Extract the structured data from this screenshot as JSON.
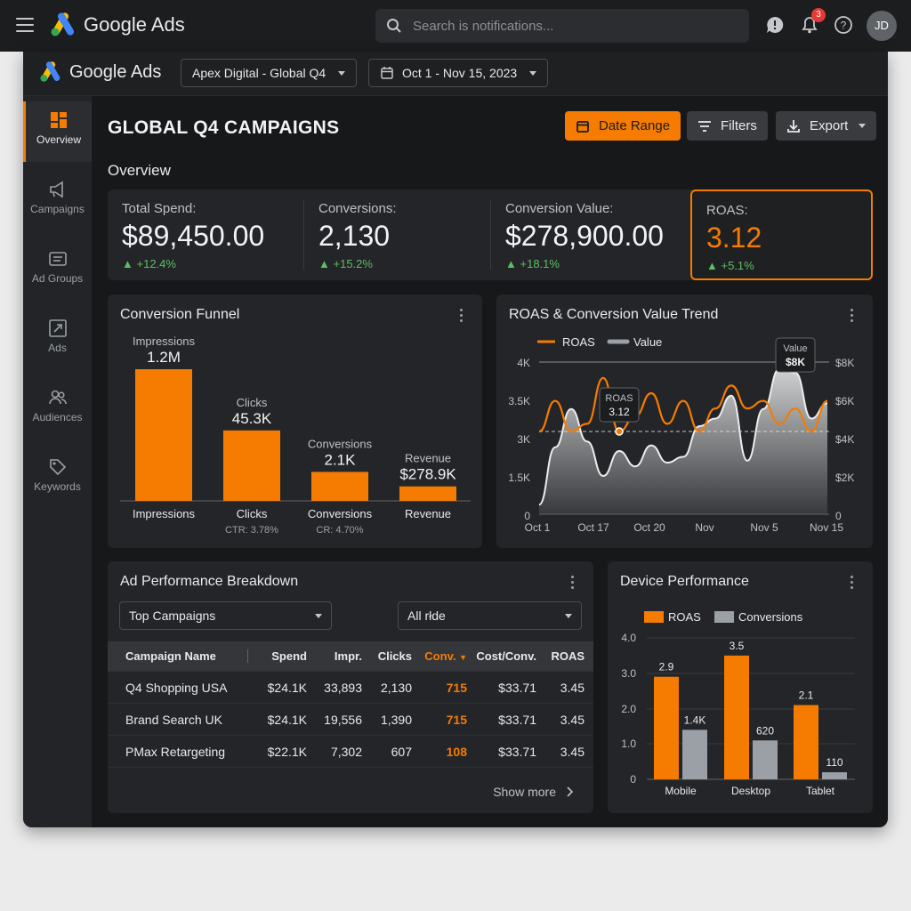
{
  "app": {
    "name": "Google Ads"
  },
  "search": {
    "placeholder": "Search is notifications..."
  },
  "notifications": {
    "count": "3"
  },
  "user": {
    "initials": "JD"
  },
  "header": {
    "account": "Apex Digital - Global Q4",
    "date_range": "Oct 1 - Nov 15, 2023"
  },
  "sidebar": {
    "items": [
      {
        "label": "Overview",
        "icon": "dashboard-icon",
        "active": true
      },
      {
        "label": "Campaigns",
        "icon": "megaphone-icon"
      },
      {
        "label": "Ad Groups",
        "icon": "folder-icon"
      },
      {
        "label": "Ads",
        "icon": "ad-icon"
      },
      {
        "label": "Audiences",
        "icon": "people-icon"
      },
      {
        "label": "Keywords",
        "icon": "key-icon"
      }
    ]
  },
  "page": {
    "title": "GLOBAL Q4 CAMPAIGNS",
    "section": "Overview",
    "buttons": {
      "date_range": "Date Range",
      "filters": "Filters",
      "export": "Export"
    }
  },
  "kpis": [
    {
      "label": "Total Spend:",
      "value": "$89,450.00",
      "delta": "+12.4%"
    },
    {
      "label": "Conversions:",
      "value": "2,130",
      "delta": "+15.2%"
    },
    {
      "label": "Conversion Value:",
      "value": "$278,900.00",
      "delta": "+18.1%"
    },
    {
      "label": "ROAS:",
      "value": "3.12",
      "delta": "+5.1%"
    }
  ],
  "colors": {
    "accent": "#f57c00",
    "positive": "#5cbf63",
    "background": "#17181a"
  },
  "funnel": {
    "title": "Conversion Funnel",
    "stages": [
      {
        "name": "Impressions",
        "value_label": "1.2M",
        "value": 1200000,
        "sub": ""
      },
      {
        "name": "Clicks",
        "value_label": "45.3K",
        "value": 45300,
        "sub": "CTR: 3.78%"
      },
      {
        "name": "Conversions",
        "value_label": "2.1K",
        "value": 2100,
        "sub": "CR: 4.70%"
      },
      {
        "name": "Revenue",
        "value_label": "$278.9K",
        "value": 278900,
        "sub": ""
      }
    ],
    "bar_levels": [
      1.0,
      0.535,
      0.22,
      0.11
    ]
  },
  "trend": {
    "title": "ROAS & Conversion Value Trend",
    "legend": [
      "ROAS",
      "Value"
    ],
    "left_ticks": [
      "4K",
      "3.5K",
      "3K",
      "1.5K",
      "0"
    ],
    "right_ticks": [
      "$8K",
      "$6K",
      "$4K",
      "$2K",
      "0"
    ],
    "x_labels": [
      "Oct 1",
      "Oct 17",
      "Oct 20",
      "Nov",
      "Nov 5",
      "Nov 15"
    ],
    "tooltip_roas": {
      "label": "ROAS",
      "value": "3.12"
    },
    "tooltip_value": {
      "label": "Value",
      "value": "$8K"
    }
  },
  "chart_data": {
    "type": "area",
    "title": "ROAS & Conversion Value Trend",
    "x_labels": [
      "Oct 1",
      "Oct 17",
      "Oct 20",
      "Nov",
      "Nov 5",
      "Nov 15"
    ],
    "series": [
      {
        "name": "ROAS",
        "values": [
          3.1,
          3.5,
          3.1,
          3.2,
          3.8,
          3.1,
          3.3,
          3.6,
          3.2,
          3.5,
          3.1,
          3.4,
          3.7,
          3.4,
          3.5,
          3.2,
          3.4,
          3.1,
          3.5
        ]
      },
      {
        "name": "Value",
        "values": [
          0.5,
          3.5,
          5.5,
          3.8,
          2.0,
          3.3,
          2.5,
          3.6,
          2.7,
          3.0,
          4.6,
          5.0,
          6.2,
          2.8,
          5.5,
          7.6,
          7.4,
          5.0,
          5.8
        ]
      }
    ],
    "y_left_ticks": [
      "4K",
      "3.5K",
      "3K",
      "1.5K",
      "0"
    ],
    "y_right_ticks": [
      "$8K",
      "$6K",
      "$4K",
      "$2K",
      "0"
    ]
  },
  "table": {
    "title": "Ad Performance Breakdown",
    "filter_left": "Top Campaigns",
    "filter_right": "All rłde",
    "columns": [
      "Campaign Name",
      "Spend",
      "Impr.",
      "Clicks",
      "Conv.",
      "Cost/Conv.",
      "ROAS"
    ],
    "rows": [
      [
        "Q4 Shopping USA",
        "$24.1K",
        "33,893",
        "2,130",
        "715",
        "$33.71",
        "3.45"
      ],
      [
        "Brand Search UK",
        "$24.1K",
        "19,556",
        "1,390",
        "715",
        "$33.71",
        "3.45"
      ],
      [
        "PMax Retargeting",
        "$22.1K",
        "7,302",
        "607",
        "108",
        "$33.71",
        "3.45"
      ]
    ],
    "show_more": "Show more"
  },
  "device": {
    "title": "Device Performance",
    "legend": [
      "ROAS",
      "Conversions"
    ],
    "y_ticks": [
      "4.0",
      "3.0",
      "2.0",
      "1.0",
      "0"
    ],
    "categories": [
      "Mobile",
      "Desktop",
      "Tablet"
    ],
    "roas": [
      2.9,
      3.5,
      2.1
    ],
    "roas_labels": [
      "2.9",
      "3.5",
      "2.1"
    ],
    "conv_labels": [
      "1.4K",
      "620",
      "110"
    ],
    "conv_levels": [
      1.4,
      1.1,
      0.2
    ]
  }
}
